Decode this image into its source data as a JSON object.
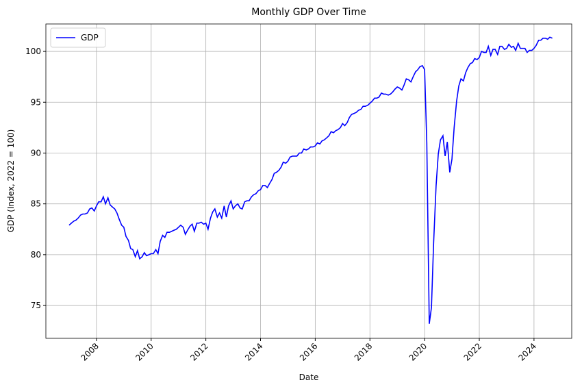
{
  "chart_data": {
    "type": "line",
    "title": "Monthly GDP Over Time",
    "x_label": "Date",
    "y_label": "GDP (Index, 2022 = 100)",
    "xlim": [
      2006.15,
      2025.38
    ],
    "ylim": [
      71.77,
      102.7
    ],
    "xticks": [
      2008,
      2010,
      2012,
      2014,
      2016,
      2018,
      2020,
      2022,
      2024
    ],
    "yticks": [
      75,
      80,
      85,
      90,
      95,
      100
    ],
    "grid": true,
    "legend": "upper-left",
    "x": [
      2007,
      2007.08,
      2007.17,
      2007.25,
      2007.33,
      2007.42,
      2007.5,
      2007.58,
      2007.67,
      2007.75,
      2007.83,
      2007.92,
      2008,
      2008.08,
      2008.17,
      2008.25,
      2008.33,
      2008.42,
      2008.5,
      2008.58,
      2008.67,
      2008.75,
      2008.83,
      2008.92,
      2009,
      2009.08,
      2009.17,
      2009.25,
      2009.33,
      2009.42,
      2009.5,
      2009.58,
      2009.67,
      2009.75,
      2009.83,
      2009.92,
      2010,
      2010.08,
      2010.17,
      2010.25,
      2010.33,
      2010.42,
      2010.5,
      2010.58,
      2010.67,
      2010.75,
      2010.83,
      2010.92,
      2011,
      2011.08,
      2011.17,
      2011.25,
      2011.33,
      2011.42,
      2011.5,
      2011.58,
      2011.67,
      2011.75,
      2011.83,
      2011.92,
      2012,
      2012.08,
      2012.17,
      2012.25,
      2012.33,
      2012.42,
      2012.5,
      2012.58,
      2012.67,
      2012.75,
      2012.83,
      2012.92,
      2013,
      2013.08,
      2013.17,
      2013.25,
      2013.33,
      2013.42,
      2013.5,
      2013.58,
      2013.67,
      2013.75,
      2013.83,
      2013.92,
      2014,
      2014.08,
      2014.17,
      2014.25,
      2014.33,
      2014.42,
      2014.5,
      2014.58,
      2014.67,
      2014.75,
      2014.83,
      2014.92,
      2015,
      2015.08,
      2015.17,
      2015.25,
      2015.33,
      2015.42,
      2015.5,
      2015.58,
      2015.67,
      2015.75,
      2015.83,
      2015.92,
      2016,
      2016.08,
      2016.17,
      2016.25,
      2016.33,
      2016.42,
      2016.5,
      2016.58,
      2016.67,
      2016.75,
      2016.83,
      2016.92,
      2017,
      2017.08,
      2017.17,
      2017.25,
      2017.33,
      2017.42,
      2017.5,
      2017.58,
      2017.67,
      2017.75,
      2017.83,
      2017.92,
      2018,
      2018.08,
      2018.17,
      2018.25,
      2018.33,
      2018.42,
      2018.5,
      2018.58,
      2018.67,
      2018.75,
      2018.83,
      2018.92,
      2019,
      2019.08,
      2019.17,
      2019.25,
      2019.33,
      2019.42,
      2019.5,
      2019.58,
      2019.67,
      2019.75,
      2019.83,
      2019.92,
      2020,
      2020.08,
      2020.17,
      2020.25,
      2020.33,
      2020.42,
      2020.5,
      2020.58,
      2020.67,
      2020.75,
      2020.83,
      2020.92,
      2021,
      2021.08,
      2021.17,
      2021.25,
      2021.33,
      2021.42,
      2021.5,
      2021.58,
      2021.67,
      2021.75,
      2021.83,
      2021.92,
      2022,
      2022.08,
      2022.17,
      2022.25,
      2022.33,
      2022.42,
      2022.5,
      2022.58,
      2022.67,
      2022.75,
      2022.83,
      2022.92,
      2023,
      2023.08,
      2023.17,
      2023.25,
      2023.33,
      2023.42,
      2023.5,
      2023.58,
      2023.67,
      2023.75,
      2023.83,
      2023.92,
      2024,
      2024.08,
      2024.17,
      2024.25,
      2024.33,
      2024.42,
      2024.5,
      2024.58,
      2024.67
    ],
    "series": [
      {
        "name": "GDP",
        "color": "#0000ff",
        "values": [
          82.9,
          83.1,
          83.3,
          83.4,
          83.6,
          83.9,
          84.0,
          84.0,
          84.1,
          84.5,
          84.6,
          84.3,
          84.8,
          85.2,
          85.2,
          85.7,
          85.0,
          85.6,
          84.9,
          84.7,
          84.5,
          84.1,
          83.5,
          82.9,
          82.7,
          81.8,
          81.4,
          80.6,
          80.5,
          79.8,
          80.4,
          79.6,
          79.8,
          80.2,
          79.9,
          80.0,
          80.1,
          80.1,
          80.5,
          80.1,
          81.3,
          81.9,
          81.7,
          82.2,
          82.2,
          82.3,
          82.4,
          82.5,
          82.7,
          82.9,
          82.7,
          82.0,
          82.4,
          82.8,
          83.0,
          82.3,
          83.1,
          83.1,
          83.2,
          83.0,
          83.1,
          82.5,
          83.6,
          84.2,
          84.5,
          83.7,
          84.1,
          83.6,
          84.8,
          83.7,
          84.8,
          85.3,
          84.5,
          84.8,
          85.0,
          84.6,
          84.5,
          85.2,
          85.3,
          85.3,
          85.7,
          85.9,
          86.0,
          86.3,
          86.4,
          86.8,
          86.8,
          86.6,
          87.0,
          87.4,
          88.0,
          88.1,
          88.3,
          88.6,
          89.1,
          89.0,
          89.2,
          89.6,
          89.7,
          89.7,
          89.7,
          90.0,
          90.0,
          90.4,
          90.3,
          90.4,
          90.6,
          90.6,
          90.7,
          91.0,
          90.9,
          91.2,
          91.3,
          91.5,
          91.7,
          92.1,
          92.0,
          92.2,
          92.3,
          92.5,
          92.9,
          92.7,
          93.0,
          93.5,
          93.8,
          93.9,
          94.0,
          94.2,
          94.3,
          94.6,
          94.6,
          94.7,
          94.9,
          95.1,
          95.4,
          95.4,
          95.5,
          95.9,
          95.8,
          95.8,
          95.7,
          95.8,
          96.0,
          96.3,
          96.5,
          96.4,
          96.2,
          96.7,
          97.3,
          97.2,
          97.0,
          97.5,
          98.0,
          98.2,
          98.5,
          98.6,
          98.2,
          91.0,
          73.2,
          74.8,
          81.2,
          86.8,
          89.9,
          91.3,
          91.7,
          89.7,
          91.1,
          88.1,
          89.4,
          92.5,
          95.1,
          96.6,
          97.3,
          97.1,
          97.9,
          98.4,
          98.8,
          98.9,
          99.3,
          99.2,
          99.4,
          100.0,
          99.9,
          99.9,
          100.5,
          99.6,
          100.2,
          100.2,
          99.7,
          100.5,
          100.5,
          100.2,
          100.3,
          100.7,
          100.4,
          100.5,
          100.1,
          100.8,
          100.3,
          100.3,
          100.3,
          99.9,
          100.1,
          100.1,
          100.3,
          100.6,
          101.1,
          101.1,
          101.3,
          101.3,
          101.2,
          101.4,
          101.3
        ]
      }
    ]
  }
}
